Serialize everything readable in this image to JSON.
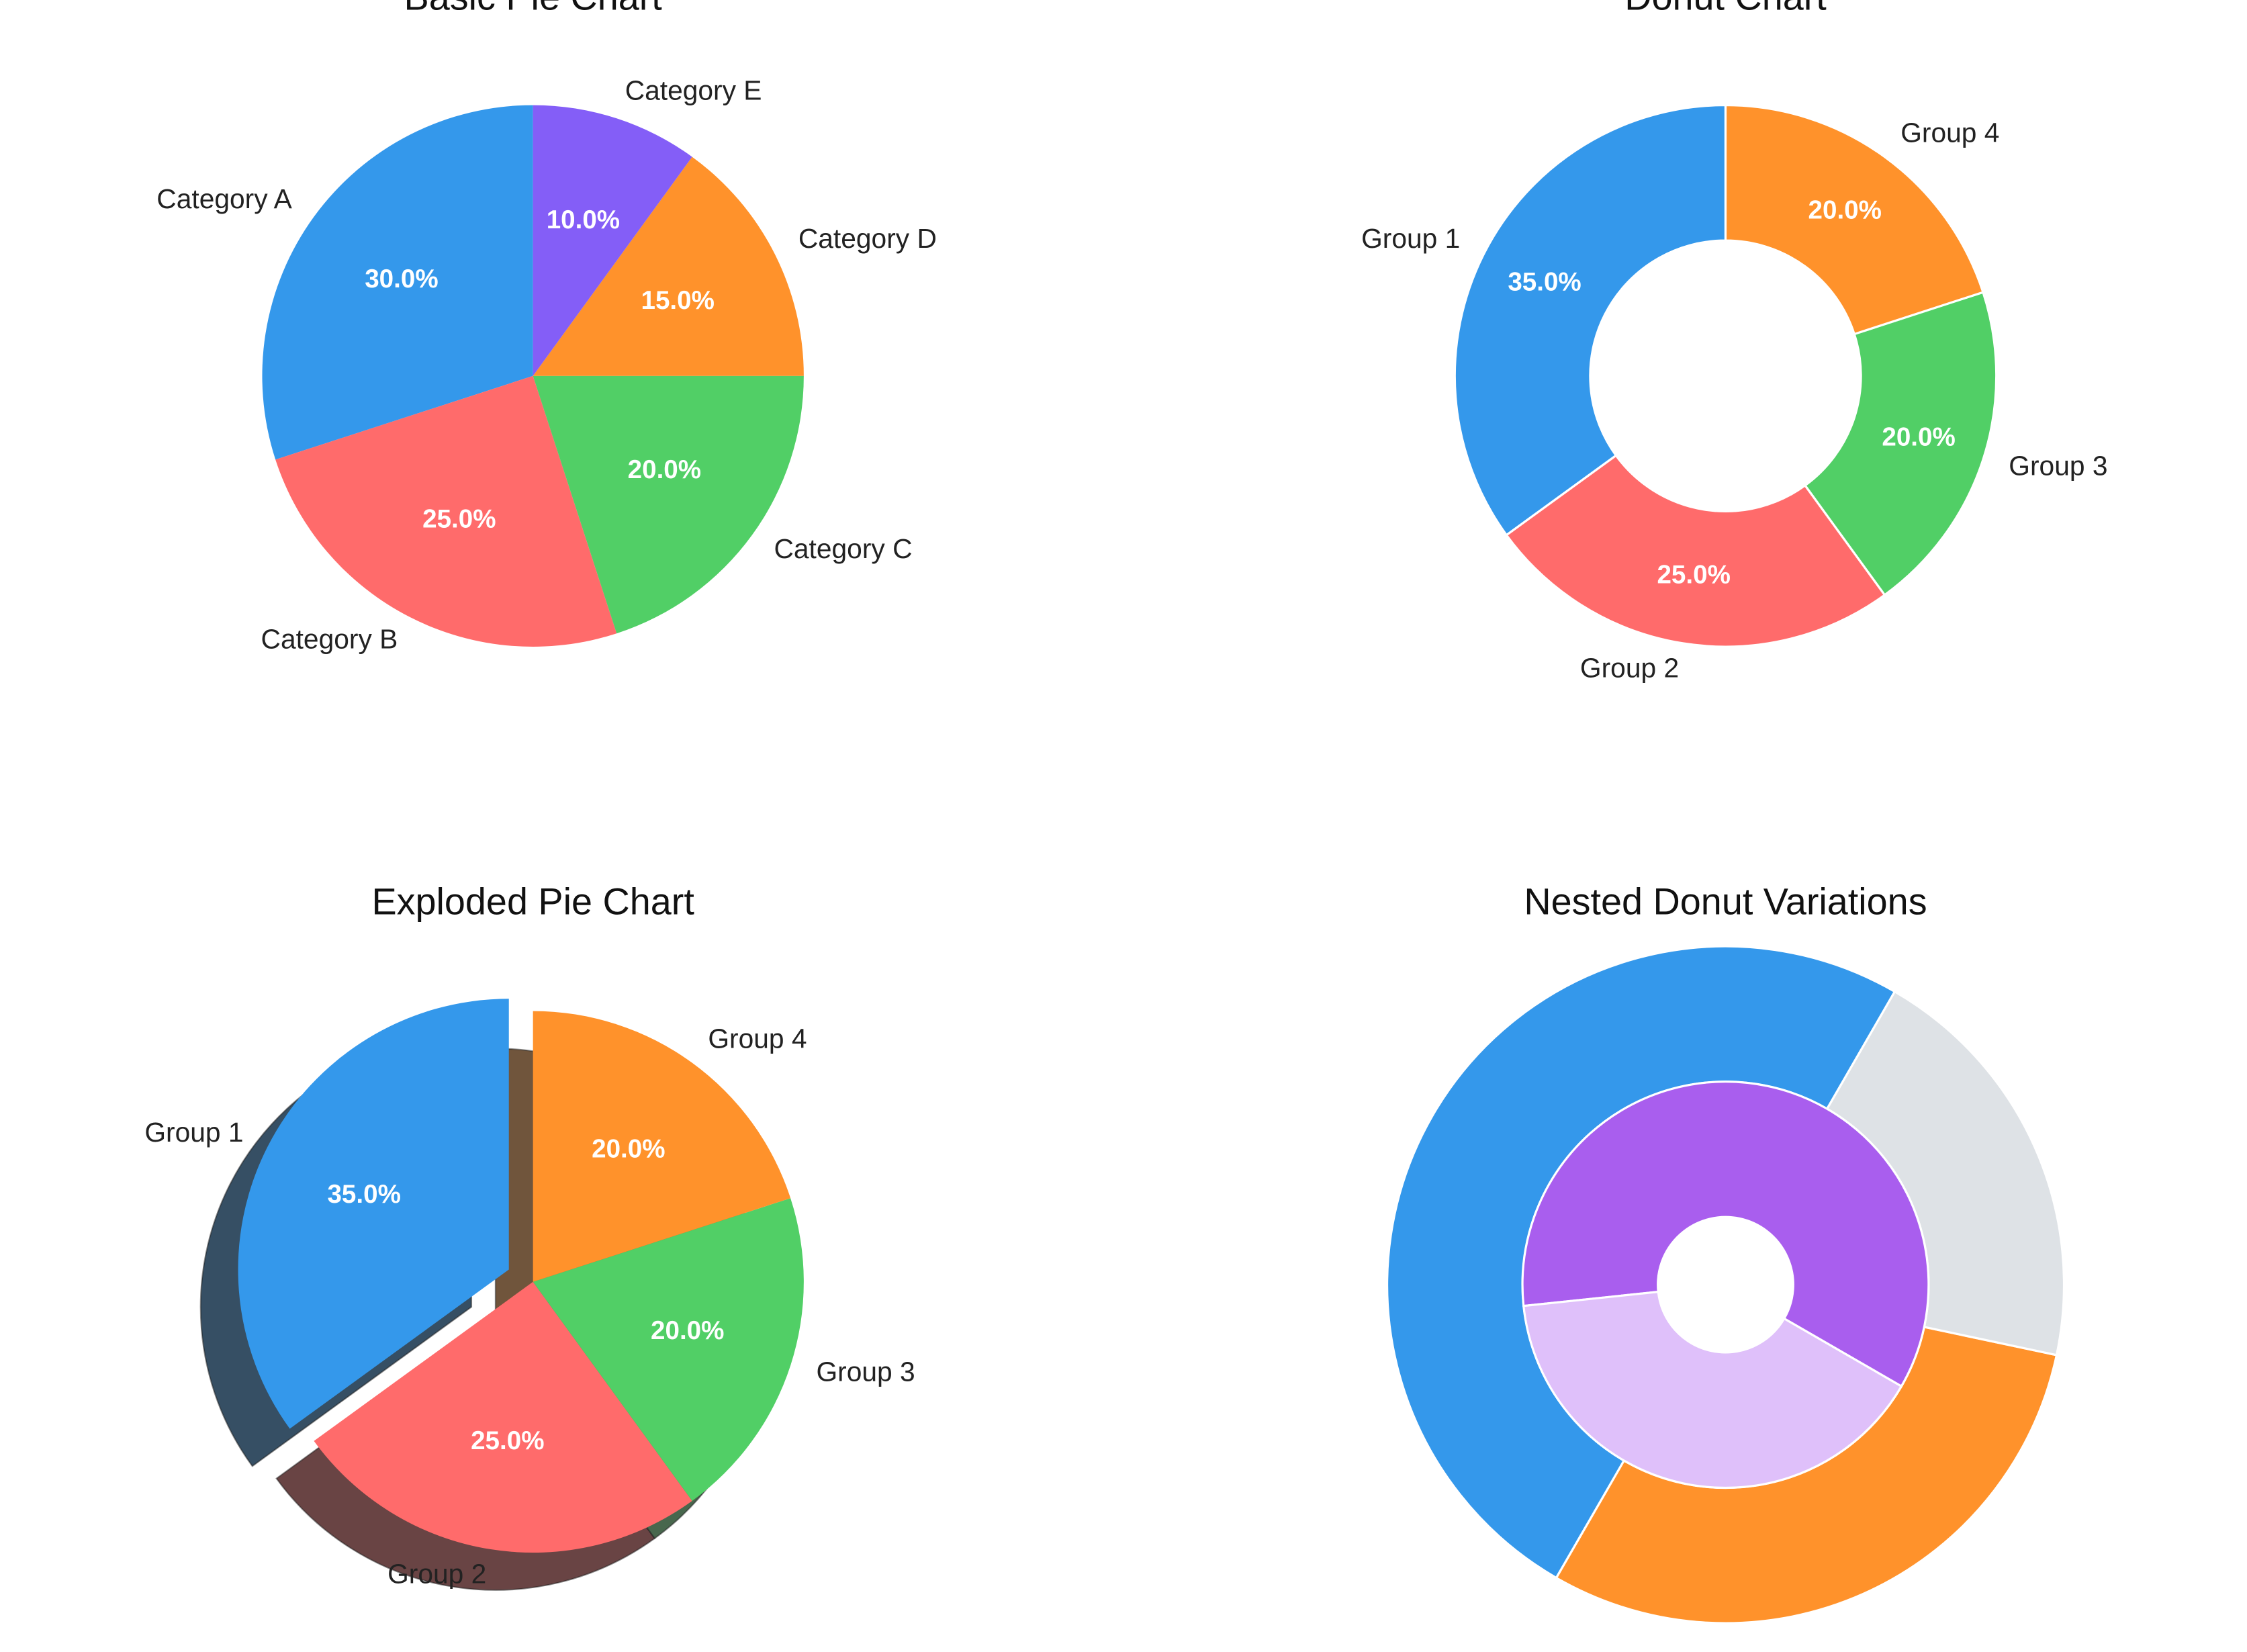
{
  "chart_data": [
    {
      "type": "pie",
      "title": "Basic Pie Chart",
      "categories": [
        "Category A",
        "Category B",
        "Category C",
        "Category D",
        "Category E"
      ],
      "values": [
        30,
        25,
        20,
        15,
        10
      ],
      "value_labels": [
        "30.0%",
        "25.0%",
        "20.0%",
        "15.0%",
        "10.0%"
      ],
      "colors": [
        "#3498eb",
        "#ff6b6b",
        "#51cf66",
        "#ff922b",
        "#845ef7"
      ],
      "startangle": 90
    },
    {
      "type": "donut",
      "title": "Donut Chart",
      "categories": [
        "Group 1",
        "Group 2",
        "Group 3",
        "Group 4"
      ],
      "values": [
        35,
        25,
        20,
        20
      ],
      "value_labels": [
        "35.0%",
        "25.0%",
        "20.0%",
        "20.0%"
      ],
      "colors": [
        "#3498eb",
        "#ff6b6b",
        "#51cf66",
        "#ff922b"
      ],
      "startangle": 90,
      "ring_width": 0.5
    },
    {
      "type": "pie",
      "title": "Exploded Pie Chart",
      "categories": [
        "Group 1",
        "Group 2",
        "Group 3",
        "Group 4"
      ],
      "values": [
        35,
        25,
        20,
        20
      ],
      "value_labels": [
        "35.0%",
        "25.0%",
        "20.0%",
        "20.0%"
      ],
      "colors": [
        "#3498eb",
        "#ff6b6b",
        "#51cf66",
        "#ff922b"
      ],
      "startangle": 90,
      "explode": [
        0.1,
        0,
        0,
        0
      ],
      "shadow": true
    },
    {
      "type": "nested-donut",
      "title": "Nested Donut Variations",
      "rings": [
        {
          "values": [
            50,
            30,
            20
          ],
          "colors": [
            "#3498eb",
            "#ff922b",
            "#dee2e6"
          ],
          "startangle": 60
        },
        {
          "values": [
            60,
            40
          ],
          "colors": [
            "#a95eee",
            "#dfc0fa"
          ],
          "startangle": -30
        }
      ]
    }
  ]
}
